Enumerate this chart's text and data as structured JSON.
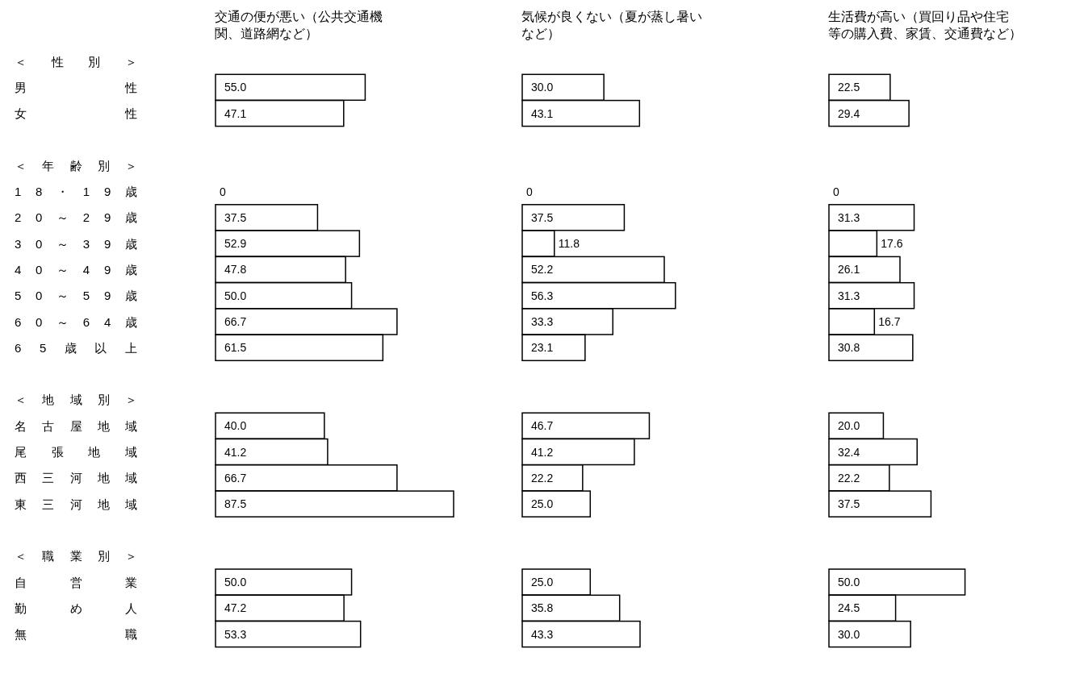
{
  "chart_data": [
    {
      "type": "bar",
      "orientation": "horizontal",
      "title": "交通の便が悪い（公共交通機関、道路網など）",
      "color": "#ffffff",
      "tick_labels": "y",
      "categories": [
        "＜ 性 別 ＞",
        "男 性",
        "女 性",
        null,
        "＜ 年 齢 別 ＞",
        "1 8 ・ 1 9 歳",
        "2 0 ～ 2 9 歳",
        "3 0 ～ 3 9 歳",
        "4 0 ～ 4 9 歳",
        "5 0 ～ 5 9 歳",
        "6 0 ～ 6 4 歳",
        "6 5 歳 以 上",
        null,
        "＜ 地 域 別 ＞",
        "名 古 屋 地 域",
        "尾 張 地 域",
        "西 三 河 地 域",
        "東 三 河 地 域",
        null,
        "＜ 職 業 別 ＞",
        "自 営 業",
        "勤 め 人",
        "無 職"
      ],
      "values": [
        null,
        55.0,
        47.1,
        null,
        null,
        0,
        37.5,
        52.9,
        47.8,
        50.0,
        66.7,
        61.5,
        null,
        null,
        40.0,
        41.2,
        66.7,
        87.5,
        null,
        null,
        50.0,
        47.2,
        53.3
      ],
      "value_labels": [
        null,
        "55.0",
        "47.1",
        null,
        null,
        "0",
        "37.5",
        "52.9",
        "47.8",
        "50.0",
        "66.7",
        "61.5",
        null,
        null,
        "40.0",
        "41.2",
        "66.7",
        "87.5",
        null,
        null,
        "50.0",
        "47.2",
        "53.3"
      ]
    },
    {
      "type": "bar",
      "orientation": "horizontal",
      "title": "気候が良くない（夏が蒸し暑いなど）",
      "color": "#ffffff",
      "tick_labels": false,
      "categories": [
        null,
        null,
        null,
        null,
        null,
        null,
        null,
        null,
        null,
        null,
        null,
        null,
        null,
        null,
        null,
        null,
        null,
        null,
        null,
        null,
        null,
        null,
        null
      ],
      "values": [
        null,
        30.0,
        43.1,
        null,
        null,
        0,
        37.5,
        11.8,
        52.2,
        56.3,
        33.3,
        23.1,
        null,
        null,
        46.7,
        41.2,
        22.2,
        25.0,
        null,
        null,
        25.0,
        35.8,
        43.3
      ],
      "value_labels": [
        null,
        "30.0",
        "43.1",
        null,
        null,
        "0",
        "37.5",
        "11.8",
        "52.2",
        "56.3",
        "33.3",
        "23.1",
        null,
        null,
        "46.7",
        "41.2",
        "22.2",
        "25.0",
        null,
        null,
        "25.0",
        "35.8",
        "43.3"
      ]
    },
    {
      "type": "bar",
      "orientation": "horizontal",
      "title": "生活費が高い（買回り品や住宅等の購入費、家賃、交通費など）",
      "color": "#ffffff",
      "tick_labels": false,
      "categories": [
        null,
        null,
        null,
        null,
        null,
        null,
        null,
        null,
        null,
        null,
        null,
        null,
        null,
        null,
        null,
        null,
        null,
        null,
        null,
        null,
        null,
        null,
        null
      ],
      "values": [
        null,
        22.5,
        29.4,
        null,
        null,
        0,
        31.3,
        17.6,
        26.1,
        31.3,
        16.7,
        30.8,
        null,
        null,
        20.0,
        32.4,
        22.2,
        37.5,
        null,
        null,
        50.0,
        24.5,
        30.0
      ],
      "value_labels": [
        null,
        "22.5",
        "29.4",
        null,
        null,
        "0",
        "31.3",
        "17.6",
        "26.1",
        "31.3",
        "16.7",
        "30.8",
        null,
        null,
        "20.0",
        "32.4",
        "22.2",
        "37.5",
        null,
        null,
        "50.0",
        "24.5",
        "30.0"
      ]
    }
  ]
}
